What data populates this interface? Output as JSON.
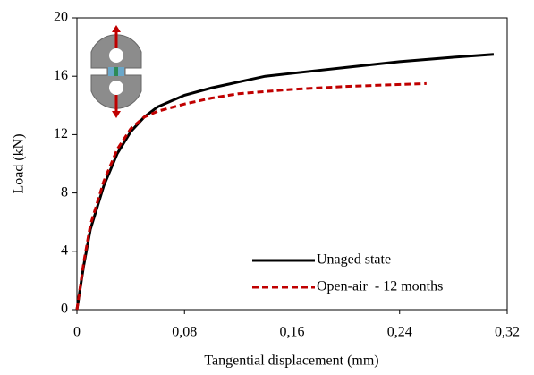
{
  "chart_data": {
    "type": "line",
    "x_label": "Tangential displacement (mm)",
    "y_label": "Load (kN)",
    "xlim": [
      0,
      0.32
    ],
    "xticks": [
      0,
      {
        "value": 0.08,
        "label": "0,08"
      },
      {
        "value": 0.16,
        "label": "0,16"
      },
      {
        "value": 0.24,
        "label": "0,24"
      },
      {
        "value": 0.32,
        "label": "0,32"
      }
    ],
    "ylim": [
      0,
      20
    ],
    "yticks": [
      0,
      4,
      8,
      12,
      16,
      20
    ],
    "legend": "lower right",
    "series": [
      {
        "name": "Unaged state",
        "color": "#000000",
        "dash": false,
        "x": [
          0,
          0.005,
          0.01,
          0.02,
          0.03,
          0.04,
          0.05,
          0.06,
          0.08,
          0.1,
          0.12,
          0.14,
          0.16,
          0.2,
          0.24,
          0.28,
          0.31
        ],
        "values": [
          0,
          3,
          5.5,
          8.5,
          10.7,
          12.2,
          13.2,
          13.9,
          14.7,
          15.2,
          15.6,
          16,
          16.2,
          16.6,
          17,
          17.3,
          17.5
        ]
      },
      {
        "name": "Open-air  - 12 months",
        "color": "#c00000",
        "dash": true,
        "x": [
          0,
          0.005,
          0.01,
          0.02,
          0.03,
          0.04,
          0.05,
          0.06,
          0.08,
          0.1,
          0.12,
          0.16,
          0.2,
          0.26
        ],
        "values": [
          0,
          3.2,
          5.8,
          8.8,
          11,
          12.4,
          13.2,
          13.6,
          14.1,
          14.5,
          14.8,
          15.1,
          15.3,
          15.5
        ]
      }
    ]
  }
}
